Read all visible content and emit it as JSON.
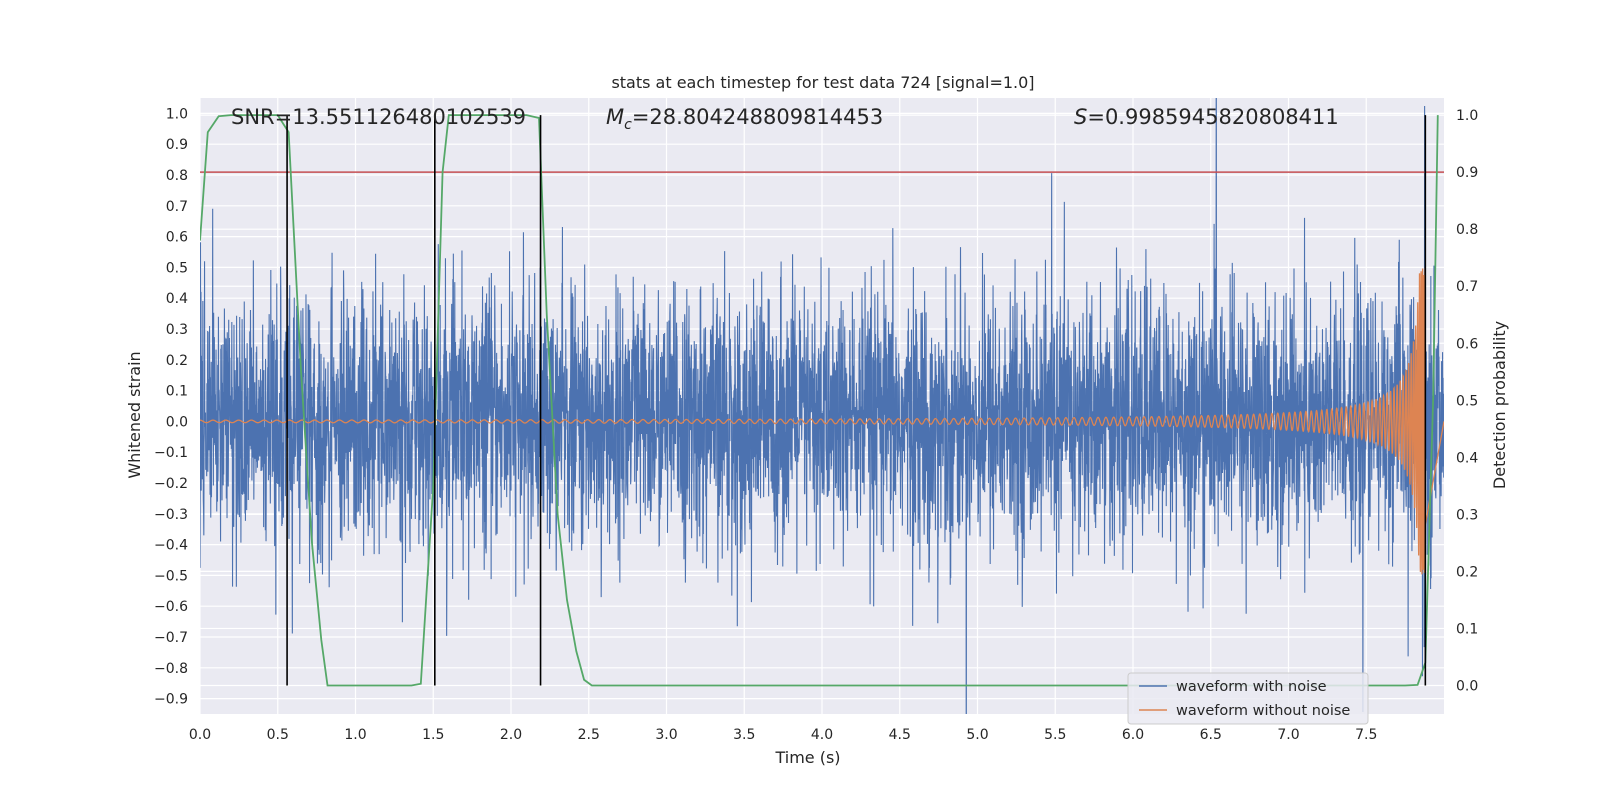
{
  "chart_data": {
    "type": "line",
    "title": "stats at each timestep for test data 724 [signal=1.0]",
    "xlabel": "Time (s)",
    "ylabel": "Whitened strain",
    "y2label": "Detection probability",
    "xlim": [
      0.0,
      8.0
    ],
    "ylim": [
      -0.95,
      1.05
    ],
    "y2lim": [
      -0.05,
      1.03
    ],
    "x_ticks": [
      "0.0",
      "0.5",
      "1.0",
      "1.5",
      "2.0",
      "2.5",
      "3.0",
      "3.5",
      "4.0",
      "4.5",
      "5.0",
      "5.5",
      "6.0",
      "6.5",
      "7.0",
      "7.5"
    ],
    "y_ticks": [
      "1.0",
      "0.9",
      "0.8",
      "0.7",
      "0.6",
      "0.5",
      "0.4",
      "0.3",
      "0.2",
      "0.1",
      "0.0",
      "-0.1",
      "-0.2",
      "-0.3",
      "-0.4",
      "-0.5",
      "-0.6",
      "-0.7",
      "-0.8",
      "-0.9"
    ],
    "y2_ticks": [
      "1.0",
      "0.9",
      "0.8",
      "0.7",
      "0.6",
      "0.5",
      "0.4",
      "0.3",
      "0.2",
      "0.1",
      "0.0"
    ],
    "grid": true,
    "legend_position": "lower-right",
    "annotations": {
      "snr": "SNR=13.551126480102539",
      "mc_symbol": "M",
      "mc_sub": "c",
      "mc_value": "=28.804248809814453",
      "s_symbol": "S",
      "s_value": "=0.9985945820808411"
    },
    "series": [
      {
        "name": "waveform with noise",
        "color": "#4c72b0",
        "noise_sigma": 0.2,
        "x_range": [
          0.0,
          8.0
        ]
      },
      {
        "name": "waveform without noise",
        "color": "#dd8452",
        "chirp": {
          "t_merge": 7.88,
          "amplitude_start": 0.004,
          "amplitude_peak": 0.5,
          "f_start": 12,
          "f_end": 250
        }
      },
      {
        "name": "detection probability",
        "color": "#55a868",
        "axis": "right",
        "x": [
          0.0,
          0.05,
          0.12,
          0.2,
          0.3,
          0.4,
          0.5,
          0.57,
          0.65,
          0.72,
          0.78,
          0.82,
          1.0,
          1.2,
          1.36,
          1.42,
          1.5,
          1.56,
          1.6,
          1.8,
          2.0,
          2.1,
          2.18,
          2.23,
          2.3,
          2.36,
          2.42,
          2.47,
          2.52,
          3.0,
          4.0,
          5.0,
          6.0,
          7.0,
          7.75,
          7.83,
          7.88,
          7.93,
          7.96
        ],
        "y": [
          0.78,
          0.97,
          0.998,
          1.0,
          1.0,
          1.0,
          1.0,
          0.97,
          0.55,
          0.25,
          0.08,
          0.0,
          0.0,
          0.0,
          0.0,
          0.003,
          0.35,
          0.9,
          1.0,
          1.0,
          1.0,
          1.0,
          0.995,
          0.65,
          0.3,
          0.15,
          0.06,
          0.01,
          0.0,
          0.0,
          0.0,
          0.0,
          0.0,
          0.0,
          0.0,
          0.001,
          0.04,
          0.5,
          1.0
        ]
      }
    ],
    "threshold": {
      "value": 0.9,
      "axis": "right",
      "color": "#c44e52"
    },
    "vlines": {
      "x": [
        0.56,
        1.51,
        2.19,
        7.88
      ],
      "y2_span": [
        0.0,
        1.0
      ],
      "color": "#000000"
    },
    "colors": {
      "background": "#eaeaf2",
      "grid": "#ffffff",
      "text": "#262626"
    }
  }
}
